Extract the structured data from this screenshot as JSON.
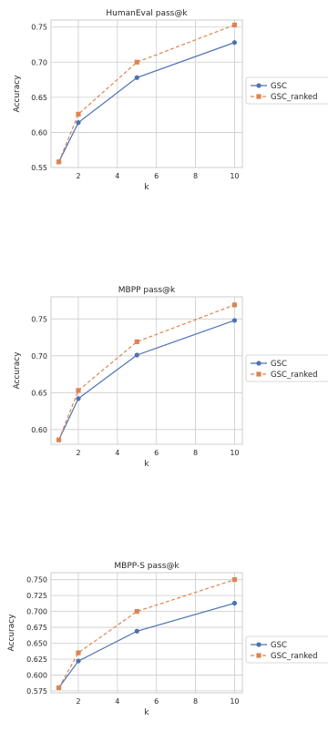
{
  "colors": {
    "gsc": "#4c72b0",
    "gsc_ranked": "#dd8452",
    "grid": "#cccccc",
    "spine": "#cccccc"
  },
  "chart_data": [
    {
      "type": "line",
      "title": "HumanEval pass@k",
      "xlabel": "k",
      "ylabel": "Accuracy",
      "x": [
        1,
        2,
        5,
        10
      ],
      "xlim": [
        0.6,
        10.4
      ],
      "xticks": [
        2,
        4,
        6,
        8,
        10
      ],
      "ylim": [
        0.55,
        0.76
      ],
      "yticks": [
        "0.55",
        "0.60",
        "0.65",
        "0.70",
        "0.75"
      ],
      "grid": true,
      "legend_placement": "outside-right",
      "series": [
        {
          "name": "GSC",
          "values": [
            0.558,
            0.614,
            0.678,
            0.728
          ],
          "style": "solid",
          "marker": "circle"
        },
        {
          "name": "GSC_ranked",
          "values": [
            0.558,
            0.626,
            0.7,
            0.753
          ],
          "style": "dashed",
          "marker": "square"
        }
      ]
    },
    {
      "type": "line",
      "title": "MBPP pass@k",
      "xlabel": "k",
      "ylabel": "Accuracy",
      "x": [
        1,
        2,
        5,
        10
      ],
      "xlim": [
        0.6,
        10.4
      ],
      "xticks": [
        2,
        4,
        6,
        8,
        10
      ],
      "ylim": [
        0.58,
        0.78
      ],
      "yticks": [
        "0.60",
        "0.65",
        "0.70",
        "0.75"
      ],
      "grid": true,
      "legend_placement": "outside-right",
      "series": [
        {
          "name": "GSC",
          "values": [
            0.586,
            0.642,
            0.701,
            0.748
          ],
          "style": "solid",
          "marker": "circle"
        },
        {
          "name": "GSC_ranked",
          "values": [
            0.586,
            0.653,
            0.719,
            0.769
          ],
          "style": "dashed",
          "marker": "square"
        }
      ]
    },
    {
      "type": "line",
      "title": "MBPP-S pass@k",
      "xlabel": "k",
      "ylabel": "Accuracy",
      "x": [
        1,
        2,
        5,
        10
      ],
      "xlim": [
        0.6,
        10.4
      ],
      "xticks": [
        2,
        4,
        6,
        8,
        10
      ],
      "ylim": [
        0.572,
        0.761
      ],
      "yticks": [
        "0.575",
        "0.600",
        "0.625",
        "0.650",
        "0.675",
        "0.700",
        "0.725",
        "0.750"
      ],
      "grid": true,
      "legend_placement": "outside-right",
      "series": [
        {
          "name": "GSC",
          "values": [
            0.58,
            0.622,
            0.669,
            0.713
          ],
          "style": "solid",
          "marker": "circle"
        },
        {
          "name": "GSC_ranked",
          "values": [
            0.58,
            0.635,
            0.7,
            0.75
          ],
          "style": "dashed",
          "marker": "square"
        }
      ]
    }
  ]
}
